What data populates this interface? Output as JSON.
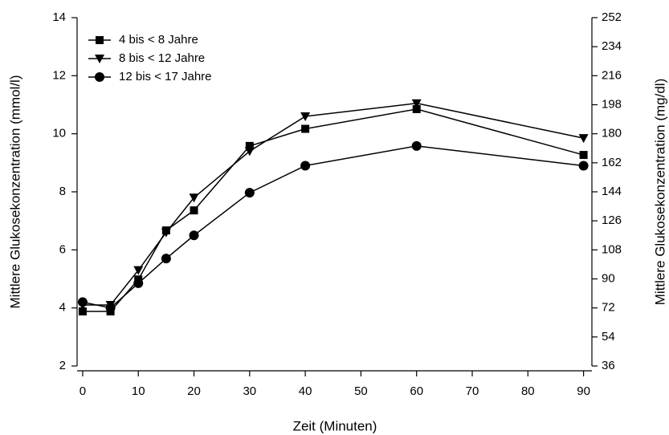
{
  "chart_data": {
    "type": "line",
    "x_label": "Zeit (Minuten)",
    "y_label": "Mittlere Glukosekonzentration (mmol/l)",
    "y2_label": "Mittlere Glukosekonzentration (mg/dl)",
    "x": [
      0,
      5,
      10,
      15,
      20,
      30,
      40,
      60,
      90
    ],
    "xlim": [
      -1,
      91.5
    ],
    "xticks": [
      0,
      10,
      20,
      30,
      40,
      50,
      60,
      70,
      80,
      90
    ],
    "ylim": [
      2,
      14
    ],
    "yticks": [
      2,
      4,
      6,
      8,
      10,
      12,
      14
    ],
    "y2lim": [
      36,
      252
    ],
    "y2ticks": [
      36,
      54,
      72,
      90,
      108,
      126,
      144,
      162,
      180,
      198,
      216,
      234,
      252
    ],
    "legend": "upper left",
    "series": [
      {
        "name": "4 bis < 8 Jahre",
        "color": "#000000",
        "marker": "square",
        "values": [
          3.88,
          3.88,
          4.98,
          6.67,
          7.36,
          9.58,
          10.17,
          10.85,
          9.27
        ]
      },
      {
        "name": "8 bis < 12 Jahre",
        "color": "#000000",
        "marker": "triangle-down",
        "values": [
          4.1,
          4.1,
          5.3,
          6.6,
          7.8,
          9.4,
          10.6,
          11.05,
          9.85
        ]
      },
      {
        "name": "12 bis < 17 Jahre",
        "color": "#000000",
        "marker": "circle",
        "values": [
          4.2,
          4.0,
          4.85,
          5.7,
          6.5,
          7.97,
          8.9,
          9.58,
          8.9
        ]
      }
    ]
  }
}
